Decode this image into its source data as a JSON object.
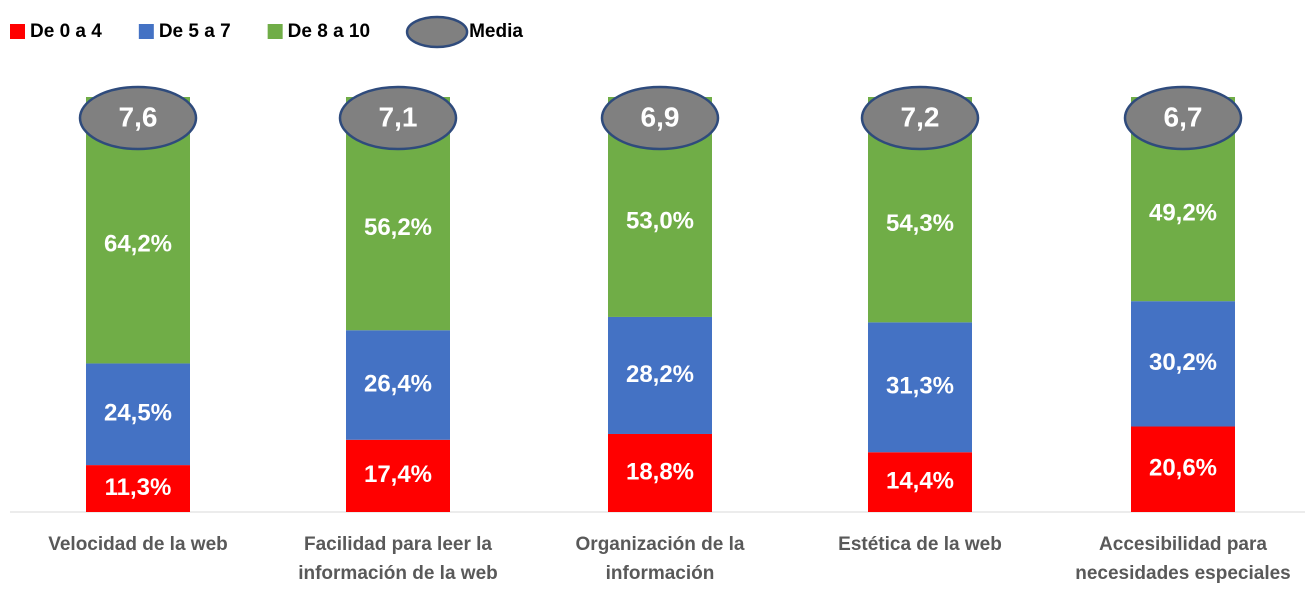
{
  "chart_data": {
    "type": "stacked_bar",
    "categories": [
      "Velocidad de la web",
      "Facilidad para leer la información de la web",
      "Organización de la información",
      "Estética de la web",
      "Accesibilidad para necesidades especiales"
    ],
    "series": [
      {
        "name": "De 0 a 4",
        "color": "#ff0000",
        "values": [
          11.3,
          17.4,
          18.8,
          14.4,
          20.6
        ],
        "value_labels": [
          "11,3%",
          "17,4%",
          "18,8%",
          "14,4%",
          "20,6%"
        ]
      },
      {
        "name": "De 5 a 7",
        "color": "#4472c4",
        "values": [
          24.5,
          26.4,
          28.2,
          31.3,
          30.2
        ],
        "value_labels": [
          "24,5%",
          "26,4%",
          "28,2%",
          "31,3%",
          "30,2%"
        ]
      },
      {
        "name": "De 8 a 10",
        "color": "#70ad47",
        "values": [
          64.2,
          56.2,
          53.0,
          54.3,
          49.2
        ],
        "value_labels": [
          "64,2%",
          "56,2%",
          "53,0%",
          "54,3%",
          "49,2%"
        ]
      }
    ],
    "media": {
      "name": "Media",
      "color": "#808080",
      "values": [
        7.6,
        7.1,
        6.9,
        7.2,
        6.7
      ],
      "value_labels": [
        "7,6",
        "7,1",
        "6,9",
        "7,2",
        "6,7"
      ]
    }
  }
}
